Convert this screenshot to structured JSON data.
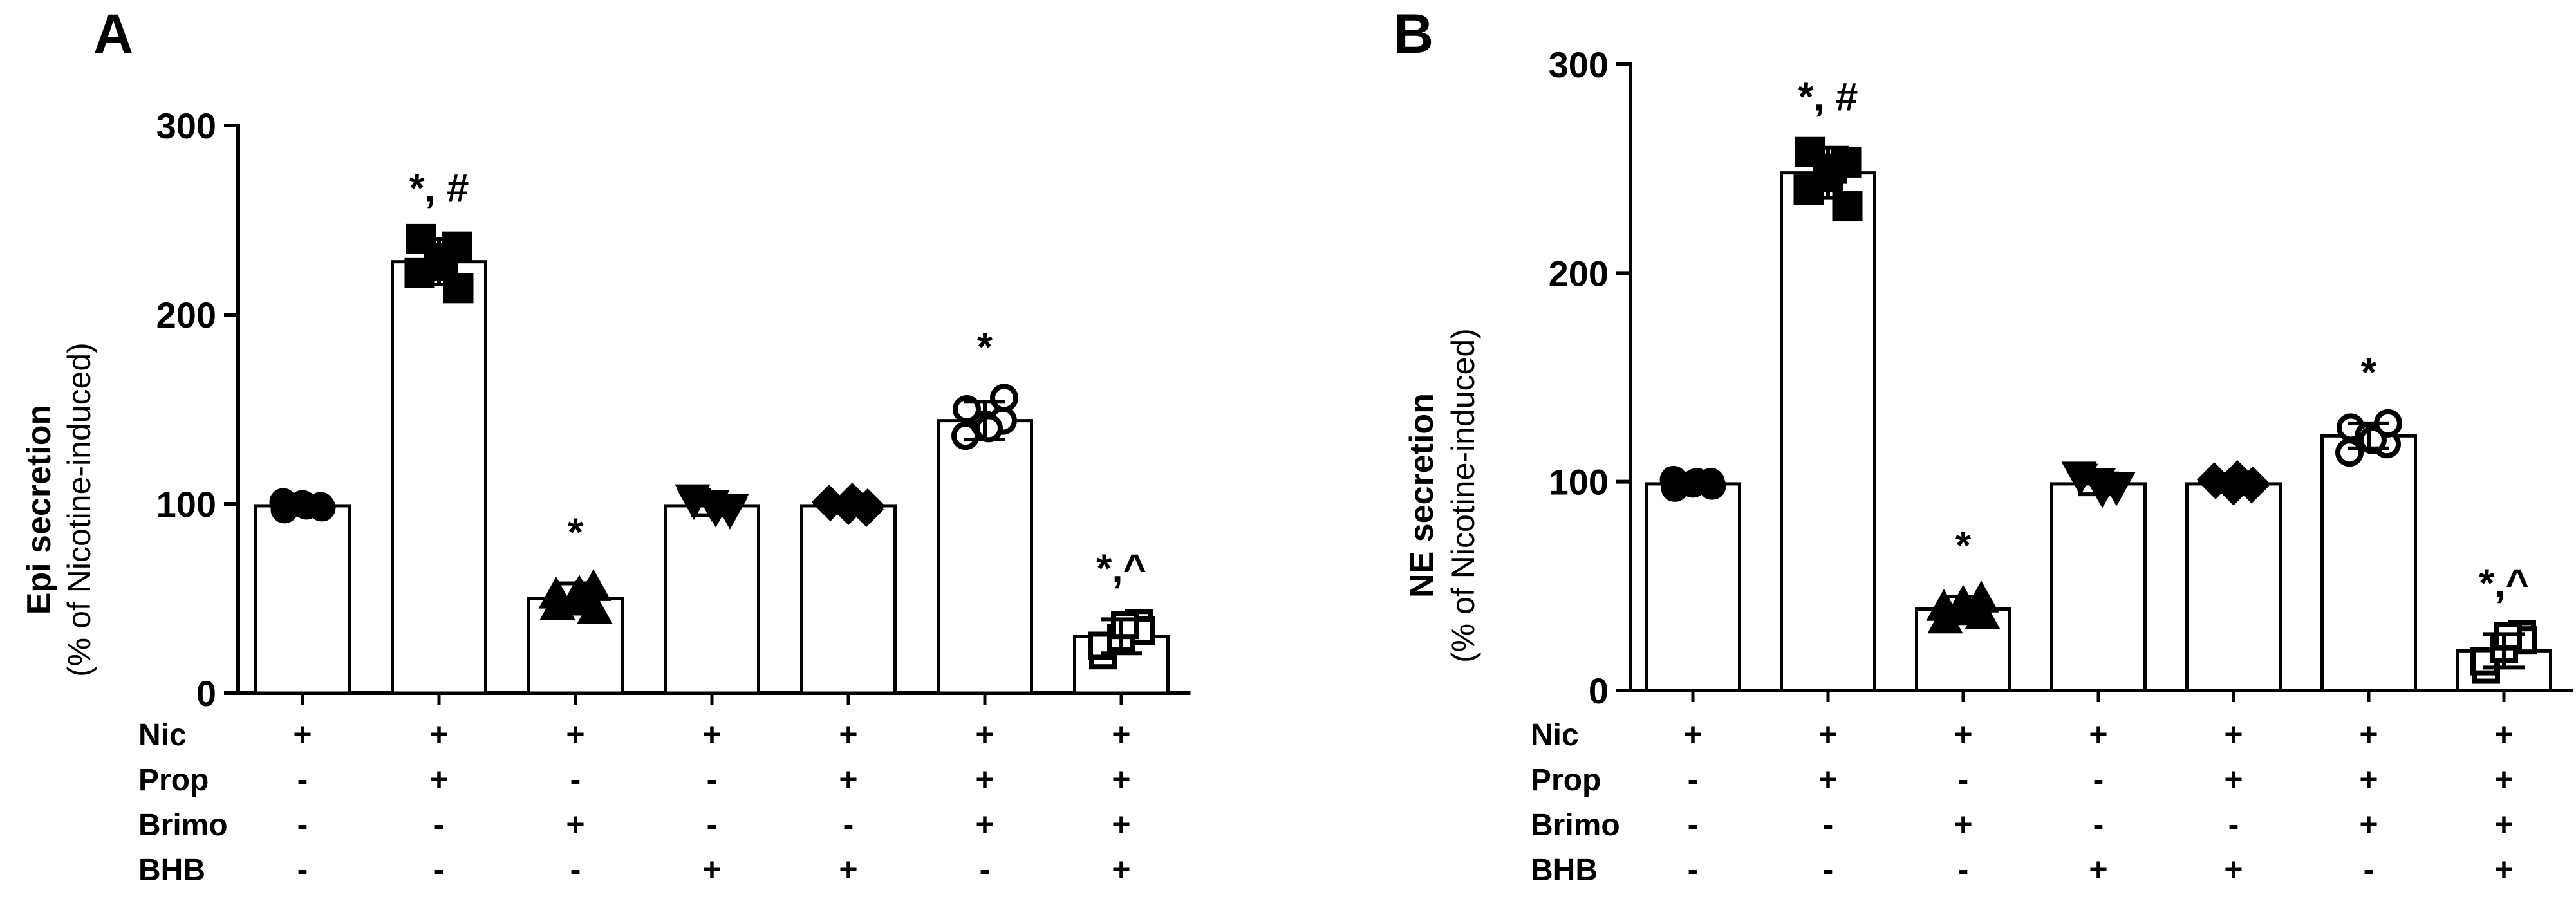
{
  "chart_data": [
    {
      "type": "bar",
      "panel_label": "A",
      "ylabel_bold": "Epi secretion",
      "ylabel_sub": "(% of Nicotine-induced)",
      "ylim": [
        0,
        300
      ],
      "yticks": [
        "0",
        "100",
        "200",
        "300"
      ],
      "grid": false,
      "values": [
        99,
        228,
        50,
        99,
        99,
        144,
        30
      ],
      "errors": [
        3,
        12,
        8,
        5,
        4,
        10,
        9
      ],
      "marker_shapes": [
        "circle",
        "square",
        "triangle-up",
        "triangle-down",
        "diamond",
        "circle-open",
        "square-open"
      ],
      "points": [
        [
          97,
          99,
          101,
          98,
          100,
          99
        ],
        [
          240,
          236,
          222,
          214,
          226,
          230
        ],
        [
          46,
          56,
          52,
          44,
          50,
          53
        ],
        [
          101,
          96,
          103,
          98,
          100,
          97
        ],
        [
          100,
          97,
          101,
          99,
          98,
          102
        ],
        [
          150,
          144,
          136,
          156,
          142,
          140
        ],
        [
          20,
          37,
          25,
          33,
          29,
          36
        ]
      ],
      "significance": [
        "",
        "*, #",
        "*",
        "",
        "",
        "*",
        "*,^"
      ]
    },
    {
      "type": "bar",
      "panel_label": "B",
      "ylabel_bold": "NE secretion",
      "ylabel_sub": "(% of Nicotine-induced)",
      "ylim": [
        0,
        300
      ],
      "yticks": [
        "0",
        "100",
        "200",
        "300"
      ],
      "grid": false,
      "values": [
        99,
        248,
        39,
        99,
        99,
        122,
        19
      ],
      "errors": [
        3,
        12,
        6,
        5,
        4,
        6,
        8
      ],
      "marker_shapes": [
        "circle",
        "square",
        "triangle-up",
        "triangle-down",
        "diamond",
        "circle-open",
        "square-open"
      ],
      "points": [
        [
          97,
          100,
          101,
          98,
          99,
          100
        ],
        [
          258,
          253,
          240,
          232,
          246,
          250
        ],
        [
          34,
          44,
          40,
          36,
          42,
          38
        ],
        [
          102,
          97,
          103,
          98,
          100,
          96
        ],
        [
          100,
          98,
          101,
          99,
          97,
          102
        ],
        [
          126,
          118,
          114,
          128,
          122,
          120
        ],
        [
          10,
          27,
          14,
          24,
          20,
          26
        ]
      ],
      "significance": [
        "",
        "*, #",
        "*",
        "",
        "",
        "*",
        "*,^"
      ]
    }
  ],
  "treatment_table": {
    "rows": [
      {
        "name": "Nic",
        "signs": [
          "+",
          "+",
          "+",
          "+",
          "+",
          "+",
          "+"
        ]
      },
      {
        "name": "Prop",
        "signs": [
          "-",
          "+",
          "-",
          "-",
          "+",
          "+",
          "+"
        ]
      },
      {
        "name": "Brimo",
        "signs": [
          "-",
          "-",
          "+",
          "-",
          "-",
          "+",
          "+"
        ]
      },
      {
        "name": "BHB",
        "signs": [
          "-",
          "-",
          "-",
          "+",
          "+",
          "-",
          "+"
        ]
      }
    ]
  }
}
